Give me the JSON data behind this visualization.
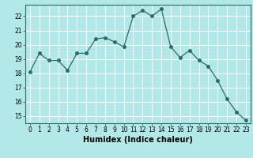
{
  "x": [
    0,
    1,
    2,
    3,
    4,
    5,
    6,
    7,
    8,
    9,
    10,
    11,
    12,
    13,
    14,
    15,
    16,
    17,
    18,
    19,
    20,
    21,
    22,
    23
  ],
  "y": [
    18.1,
    19.4,
    18.9,
    18.9,
    18.2,
    19.4,
    19.4,
    20.4,
    20.5,
    20.2,
    19.85,
    22.0,
    22.4,
    22.0,
    22.5,
    19.85,
    19.1,
    19.6,
    18.9,
    18.5,
    17.5,
    16.2,
    15.3,
    14.7
  ],
  "line_color": "#2d6b6b",
  "bg_color": "#b3e8e8",
  "grid_color": "#ffffff",
  "xlabel": "Humidex (Indice chaleur)",
  "ylim": [
    14.5,
    22.8
  ],
  "xlim": [
    -0.5,
    23.5
  ],
  "yticks": [
    15,
    16,
    17,
    18,
    19,
    20,
    21,
    22
  ],
  "xticks": [
    0,
    1,
    2,
    3,
    4,
    5,
    6,
    7,
    8,
    9,
    10,
    11,
    12,
    13,
    14,
    15,
    16,
    17,
    18,
    19,
    20,
    21,
    22,
    23
  ],
  "tick_fontsize": 5.5,
  "xlabel_fontsize": 7,
  "marker_size": 2.5,
  "linewidth": 0.9
}
